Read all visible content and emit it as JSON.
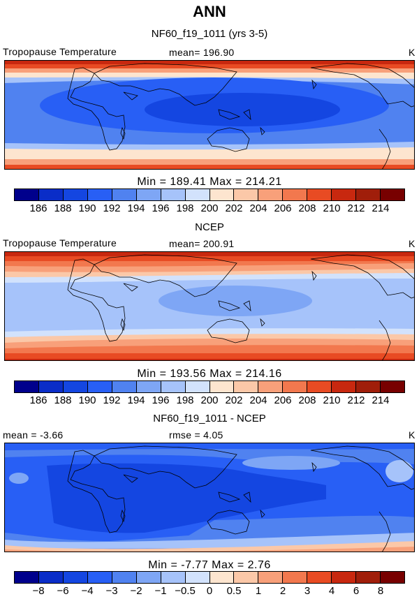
{
  "title": "ANN",
  "panels": [
    {
      "subtitle": "NF60_f19_1011 (yrs 3-5)",
      "left_label": "Tropopause Temperature",
      "center_label": "mean=  196.90",
      "units": "K",
      "minmax": "Min  =  189.41  Max  =  214.21",
      "colorbar": {
        "tick_labels": [
          "186",
          "188",
          "190",
          "192",
          "194",
          "196",
          "198",
          "200",
          "202",
          "204",
          "206",
          "208",
          "210",
          "212",
          "214"
        ],
        "colors": [
          "#00008c",
          "#0a2dc8",
          "#1446e1",
          "#285ff5",
          "#5082f0",
          "#7ea6f5",
          "#a6c3fa",
          "#d2e2fc",
          "#fde5cf",
          "#fbc8a8",
          "#f8a07a",
          "#f2784e",
          "#e84b23",
          "#c8280f",
          "#a01e0a",
          "#780000"
        ]
      }
    },
    {
      "subtitle": "NCEP",
      "left_label": "Tropopause Temperature",
      "center_label": "mean=  200.91",
      "units": "K",
      "minmax": "Min  =  193.56  Max  =  214.16",
      "colorbar": {
        "tick_labels": [
          "186",
          "188",
          "190",
          "192",
          "194",
          "196",
          "198",
          "200",
          "202",
          "204",
          "206",
          "208",
          "210",
          "212",
          "214"
        ],
        "colors": [
          "#00008c",
          "#0a2dc8",
          "#1446e1",
          "#285ff5",
          "#5082f0",
          "#7ea6f5",
          "#a6c3fa",
          "#d2e2fc",
          "#fde5cf",
          "#fbc8a8",
          "#f8a07a",
          "#f2784e",
          "#e84b23",
          "#c8280f",
          "#a01e0a",
          "#780000"
        ]
      }
    },
    {
      "subtitle": "NF60_f19_1011 - NCEP",
      "left_label": "mean =    -3.66",
      "center_label": "rmse =     4.05",
      "units": "K",
      "minmax": "Min  =    -7.77  Max  =     2.76",
      "colorbar": {
        "tick_labels": [
          "−8",
          "−6",
          "−4",
          "−3",
          "−2",
          "−1",
          "−0.5",
          "0",
          "0.5",
          "1",
          "2",
          "3",
          "4",
          "6",
          "8"
        ],
        "colors": [
          "#00008c",
          "#0a2dc8",
          "#1446e1",
          "#285ff5",
          "#5082f0",
          "#7ea6f5",
          "#a6c3fa",
          "#d2e2fc",
          "#fde5cf",
          "#fbc8a8",
          "#f8a07a",
          "#f2784e",
          "#e84b23",
          "#c8280f",
          "#a01e0a",
          "#780000"
        ]
      }
    }
  ]
}
